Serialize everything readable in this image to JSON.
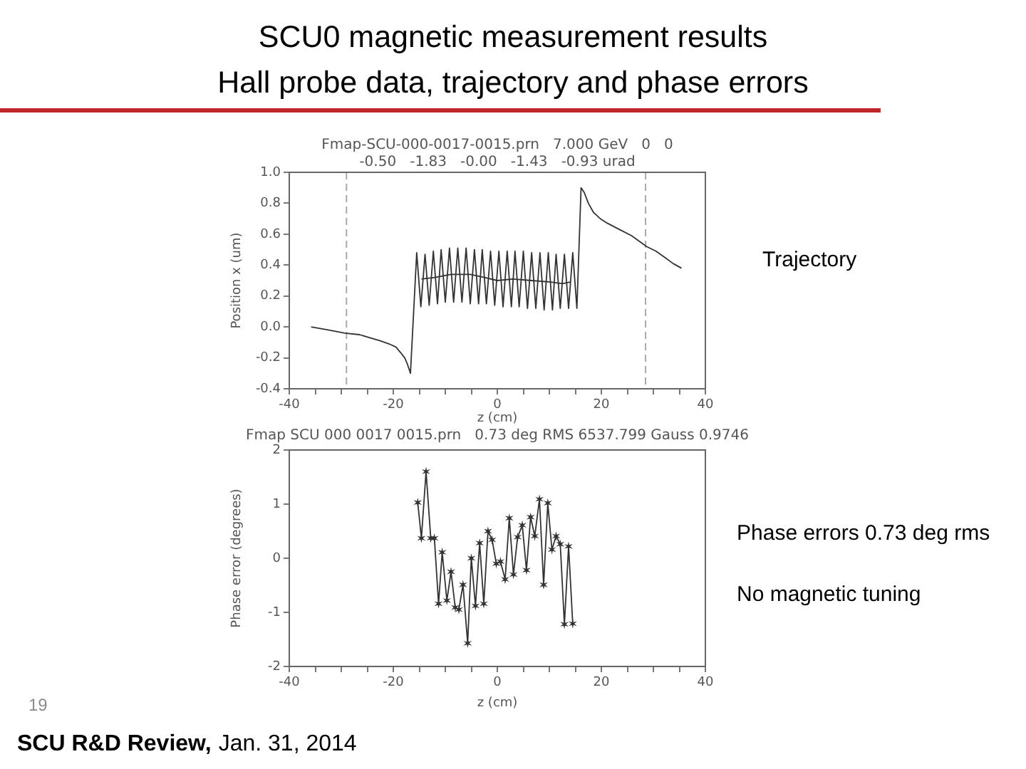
{
  "chart_data": [
    {
      "type": "other",
      "title": "SCU0 magnetic measurement results",
      "subtitle": "Hall probe data, trajectory and phase errors",
      "annotations": [
        "19",
        "SCU R&D Review,",
        "Jan. 31, 2014"
      ]
    },
    {
      "type": "line",
      "title": "Fmap-SCU-000-0017-0015.prn   7.000 GeV   0   0",
      "subtitle": "-0.50   -1.83   -0.00   -1.43   -0.93 urad",
      "xlabel": "z (cm)",
      "ylabel": "Position x (um)",
      "xlim": [
        -40,
        40
      ],
      "xticks": [
        -40,
        {
          "value": -35,
          "label": null
        },
        {
          "value": -30,
          "label": null
        },
        {
          "value": -25,
          "label": null
        },
        -20,
        {
          "value": -15,
          "label": null
        },
        {
          "value": -10,
          "label": null
        },
        {
          "value": -5,
          "label": null
        },
        0,
        {
          "value": 5,
          "label": null
        },
        {
          "value": 10,
          "label": null
        },
        {
          "value": 15,
          "label": null
        },
        20,
        {
          "value": 25,
          "label": null
        },
        {
          "value": 30,
          "label": null
        },
        {
          "value": 35,
          "label": null
        },
        40
      ],
      "ylim": [
        -0.4,
        1.0
      ],
      "yticks": [
        -0.4,
        -0.2,
        {
          "value": 0,
          "label": "0.0"
        },
        0.2,
        0.4,
        0.6,
        0.8,
        {
          "value": 1,
          "label": "1.0"
        }
      ],
      "ref_lines": [
        {
          "axis": "x",
          "value": -29,
          "color": "#aaaaaa",
          "line_style": "dashed"
        },
        {
          "axis": "x",
          "value": 28.5,
          "color": "#aaaaaa",
          "line_style": "dashed"
        }
      ],
      "series": [
        {
          "color": "#333333",
          "x": [
            -35.8,
            -32.5,
            -29.3,
            -26.5,
            -24.5,
            -22.5,
            -20.8,
            -19.5,
            -18.5,
            -17.8,
            -17.3,
            -16.7,
            -15.5,
            -14.7,
            -13.9,
            -13.1,
            -12.3,
            -11.5,
            -10.8,
            -10.0,
            -9.2,
            -8.4,
            -7.6,
            -6.8,
            -6.0,
            -5.2,
            -4.4,
            -3.6,
            -2.9,
            -2.1,
            -1.3,
            -0.5,
            0.3,
            1.1,
            1.9,
            2.7,
            3.4,
            4.2,
            5.0,
            5.8,
            6.6,
            7.4,
            8.2,
            9.0,
            9.8,
            10.6,
            11.3,
            12.1,
            12.9,
            13.7,
            14.5,
            15.3,
            16.1,
            16.7,
            17.5,
            18.5,
            19.8,
            21.2,
            23.5,
            25.8,
            28.7,
            30.5,
            32.2,
            33.8,
            35.4
          ],
          "values": [
            0.0,
            -0.02,
            -0.04,
            -0.05,
            -0.07,
            -0.09,
            -0.11,
            -0.13,
            -0.17,
            -0.2,
            -0.24,
            -0.3,
            0.48,
            0.13,
            0.47,
            0.14,
            0.49,
            0.15,
            0.5,
            0.16,
            0.51,
            0.16,
            0.51,
            0.16,
            0.51,
            0.15,
            0.5,
            0.15,
            0.5,
            0.15,
            0.49,
            0.14,
            0.49,
            0.13,
            0.49,
            0.13,
            0.49,
            0.13,
            0.49,
            0.12,
            0.48,
            0.12,
            0.48,
            0.11,
            0.48,
            0.11,
            0.47,
            0.12,
            0.47,
            0.12,
            0.48,
            0.12,
            0.9,
            0.87,
            0.8,
            0.74,
            0.7,
            0.67,
            0.63,
            0.59,
            0.52,
            0.49,
            0.45,
            0.41,
            0.38
          ]
        },
        {
          "color": "#333333",
          "x": [
            -14.6,
            -12.0,
            -8.9,
            -5.2,
            -2.5,
            0,
            3.0,
            6.6,
            10.3,
            12.5,
            14.0
          ],
          "values": [
            0.31,
            0.32,
            0.34,
            0.34,
            0.32,
            0.3,
            0.31,
            0.3,
            0.29,
            0.28,
            0.29
          ]
        }
      ],
      "annotations": [
        "Trajectory"
      ]
    },
    {
      "type": "line",
      "title": "Fmap SCU 000 0017 0015.prn   0.73 deg RMS 6537.799 Gauss 0.9746",
      "xlabel": "z (cm)",
      "ylabel": "Phase error (degrees)",
      "marker": "cross",
      "xlim": [
        -40,
        40
      ],
      "xticks": [
        -40,
        {
          "value": -35,
          "label": null
        },
        {
          "value": -30,
          "label": null
        },
        {
          "value": -25,
          "label": null
        },
        -20,
        {
          "value": -15,
          "label": null
        },
        {
          "value": -10,
          "label": null
        },
        {
          "value": -5,
          "label": null
        },
        0,
        {
          "value": 5,
          "label": null
        },
        {
          "value": 10,
          "label": null
        },
        {
          "value": 15,
          "label": null
        },
        20,
        {
          "value": 25,
          "label": null
        },
        {
          "value": 30,
          "label": null
        },
        {
          "value": 35,
          "label": null
        },
        40
      ],
      "ylim": [
        -2,
        2
      ],
      "yticks": [
        -2,
        -1,
        0,
        1,
        2
      ],
      "series": [
        {
          "color": "#333333",
          "x": [
            -15.3,
            -14.6,
            -13.7,
            -12.8,
            -12.1,
            -11.3,
            -10.6,
            -9.7,
            -8.9,
            -8.1,
            -7.4,
            -6.6,
            -5.7,
            -5.0,
            -4.2,
            -3.4,
            -2.6,
            -1.8,
            -1.0,
            -0.2,
            0.6,
            1.5,
            2.3,
            3.1,
            3.9,
            4.8,
            5.6,
            6.4,
            7.2,
            8.1,
            8.9,
            9.7,
            10.5,
            11.3,
            12.1,
            12.9,
            13.7,
            14.5
          ],
          "values": [
            1.03,
            0.37,
            1.6,
            0.37,
            0.37,
            -0.84,
            0.11,
            -0.78,
            -0.25,
            -0.91,
            -0.95,
            -0.49,
            -1.57,
            0.0,
            -0.88,
            0.28,
            -0.84,
            0.5,
            0.34,
            -0.1,
            -0.06,
            -0.39,
            0.74,
            -0.3,
            0.39,
            0.61,
            -0.22,
            0.76,
            0.41,
            1.09,
            -0.49,
            1.02,
            0.16,
            0.41,
            0.26,
            -1.22,
            0.22,
            -1.21
          ]
        }
      ],
      "annotations": [
        "Phase errors 0.73 deg rms",
        "No magnetic tuning"
      ]
    }
  ]
}
